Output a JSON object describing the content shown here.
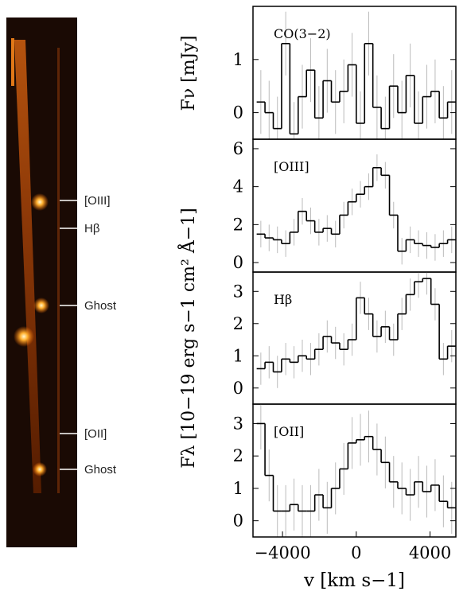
{
  "spectrum_image": {
    "labels": [
      "[OIII]",
      "Hβ",
      "Ghost",
      "[OII]",
      "Ghost"
    ]
  },
  "chart_data": [
    {
      "type": "step",
      "label": "CO(3−2)",
      "ylabel": "Fν [mJy]",
      "color": "#000000",
      "error_color": "#bbbbbb",
      "x": [
        -5175,
        -4725,
        -4275,
        -3825,
        -3375,
        -2925,
        -2475,
        -2025,
        -1575,
        -1125,
        -675,
        -225,
        225,
        675,
        1125,
        1575,
        2025,
        2475,
        2925,
        3375,
        3825,
        4275,
        4725,
        5175
      ],
      "values": [
        0.2,
        0.0,
        -0.3,
        1.3,
        -0.4,
        0.3,
        0.8,
        -0.1,
        0.6,
        0.2,
        0.4,
        0.9,
        -0.2,
        1.3,
        0.1,
        -0.3,
        0.5,
        0.0,
        0.7,
        -0.2,
        0.3,
        0.4,
        -0.1,
        0.2
      ],
      "errors": [
        0.6,
        0.6,
        0.6,
        0.6,
        0.6,
        0.6,
        0.6,
        0.6,
        0.6,
        0.6,
        0.6,
        0.6,
        0.6,
        0.6,
        0.6,
        0.6,
        0.6,
        0.6,
        0.6,
        0.6,
        0.6,
        0.6,
        0.6,
        0.6
      ],
      "xlim": [
        -5600,
        5400
      ],
      "ylim": [
        -0.5,
        2.0
      ],
      "yticks": [
        0,
        1
      ]
    },
    {
      "type": "step",
      "label": "[OIII]",
      "color": "#000000",
      "error_color": "#bbbbbb",
      "x": [
        -5175,
        -4725,
        -4275,
        -3825,
        -3375,
        -2925,
        -2475,
        -2025,
        -1575,
        -1125,
        -675,
        -225,
        225,
        675,
        1125,
        1575,
        2025,
        2475,
        2925,
        3375,
        3825,
        4275,
        4725,
        5175
      ],
      "values": [
        1.5,
        1.3,
        1.2,
        1.0,
        1.6,
        2.7,
        2.2,
        1.6,
        1.8,
        1.5,
        2.5,
        3.2,
        3.6,
        4.0,
        5.0,
        4.6,
        2.5,
        0.6,
        1.2,
        1.0,
        0.9,
        0.8,
        1.0,
        1.2
      ],
      "errors": [
        0.7,
        0.7,
        0.7,
        0.7,
        0.7,
        0.7,
        0.7,
        0.7,
        0.7,
        0.7,
        0.7,
        0.7,
        0.7,
        0.7,
        0.7,
        0.7,
        0.7,
        0.7,
        0.7,
        0.7,
        0.7,
        0.7,
        0.7,
        0.7
      ],
      "xlim": [
        -5600,
        5400
      ],
      "ylim": [
        -0.5,
        6.5
      ],
      "yticks": [
        0,
        2,
        4,
        6
      ]
    },
    {
      "type": "step",
      "label": "Hβ",
      "ylabel": "Fλ [10−19 erg s−1 cm² Å−1]",
      "color": "#000000",
      "error_color": "#bbbbbb",
      "x": [
        -5175,
        -4725,
        -4275,
        -3825,
        -3375,
        -2925,
        -2475,
        -2025,
        -1575,
        -1125,
        -675,
        -225,
        225,
        675,
        1125,
        1575,
        2025,
        2475,
        2925,
        3375,
        3825,
        4275,
        4725,
        5175
      ],
      "values": [
        0.6,
        0.8,
        0.5,
        0.9,
        0.8,
        1.0,
        0.9,
        1.2,
        1.6,
        1.4,
        1.2,
        1.5,
        2.8,
        2.3,
        1.6,
        1.9,
        1.5,
        2.3,
        2.9,
        3.3,
        3.4,
        2.6,
        0.9,
        1.3
      ],
      "errors": [
        0.5,
        0.5,
        0.5,
        0.5,
        0.5,
        0.5,
        0.5,
        0.5,
        0.5,
        0.5,
        0.5,
        0.5,
        0.5,
        0.5,
        0.5,
        0.5,
        0.5,
        0.5,
        0.5,
        0.5,
        0.5,
        0.5,
        0.5,
        0.5
      ],
      "xlim": [
        -5600,
        5400
      ],
      "ylim": [
        -0.5,
        3.6
      ],
      "yticks": [
        0,
        1,
        2,
        3
      ]
    },
    {
      "type": "step",
      "label": "[OII]",
      "xlabel": "v [km s−1]",
      "color": "#000000",
      "error_color": "#bbbbbb",
      "x": [
        -5175,
        -4725,
        -4275,
        -3825,
        -3375,
        -2925,
        -2475,
        -2025,
        -1575,
        -1125,
        -675,
        -225,
        225,
        675,
        1125,
        1575,
        2025,
        2475,
        2925,
        3375,
        3825,
        4275,
        4725,
        5175
      ],
      "values": [
        3.0,
        1.4,
        0.3,
        0.3,
        0.5,
        0.3,
        0.3,
        0.8,
        0.4,
        1.0,
        1.6,
        2.4,
        2.5,
        2.6,
        2.2,
        1.8,
        1.2,
        1.0,
        0.8,
        1.2,
        0.9,
        1.1,
        0.6,
        0.4
      ],
      "errors": [
        0.8,
        0.8,
        0.8,
        0.8,
        0.8,
        0.8,
        0.8,
        0.8,
        0.8,
        0.8,
        0.8,
        0.8,
        0.8,
        0.8,
        0.8,
        0.8,
        0.8,
        0.8,
        0.8,
        0.8,
        0.8,
        0.8,
        0.8,
        0.8
      ],
      "xlim": [
        -5600,
        5400
      ],
      "ylim": [
        -0.5,
        3.6
      ],
      "yticks": [
        0,
        1,
        2,
        3
      ],
      "xticks": [
        {
          "value": -4000,
          "label": "−4000"
        },
        0,
        4000
      ]
    }
  ]
}
